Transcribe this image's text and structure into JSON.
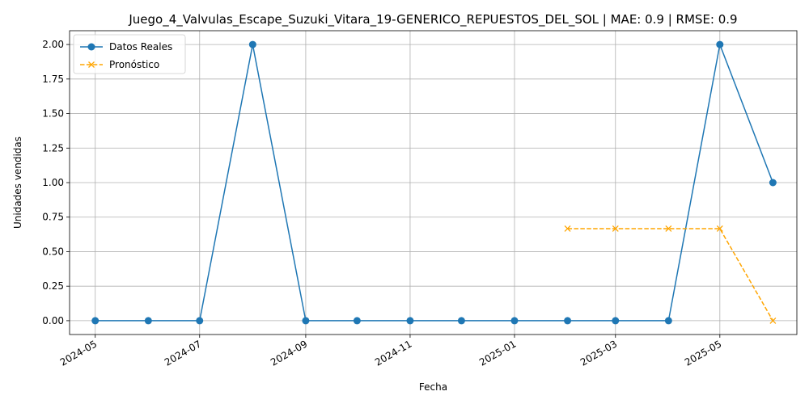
{
  "chart_data": {
    "type": "line",
    "title": "Juego_4_Valvulas_Escape_Suzuki_Vitara_19-GENERICO_REPUESTOS_DEL_SOL | MAE: 0.9 | RMSE: 0.9",
    "xlabel": "Fecha",
    "ylabel": "Unidades vendidas",
    "x_type": "date",
    "xlim": [
      "2024-04-16",
      "2025-06-15"
    ],
    "ylim": [
      -0.1,
      2.1
    ],
    "x_ticks": [
      "2024-05",
      "2024-07",
      "2024-09",
      "2024-11",
      "2025-01",
      "2025-03",
      "2025-05"
    ],
    "y_ticks": [
      "0.00",
      "0.25",
      "0.50",
      "0.75",
      "1.00",
      "1.25",
      "1.50",
      "1.75",
      "2.00"
    ],
    "grid": true,
    "legend_position": "top-left",
    "series": [
      {
        "name": "Datos Reales",
        "color": "#1f77b4",
        "style": "solid",
        "marker": "circle",
        "points": [
          {
            "x": "2024-05-01",
            "y": 0
          },
          {
            "x": "2024-06-01",
            "y": 0
          },
          {
            "x": "2024-07-01",
            "y": 0
          },
          {
            "x": "2024-08-01",
            "y": 2
          },
          {
            "x": "2024-09-01",
            "y": 0
          },
          {
            "x": "2024-10-01",
            "y": 0
          },
          {
            "x": "2024-11-01",
            "y": 0
          },
          {
            "x": "2024-12-01",
            "y": 0
          },
          {
            "x": "2025-01-01",
            "y": 0
          },
          {
            "x": "2025-02-01",
            "y": 0
          },
          {
            "x": "2025-03-01",
            "y": 0
          },
          {
            "x": "2025-04-01",
            "y": 0
          },
          {
            "x": "2025-05-01",
            "y": 2
          },
          {
            "x": "2025-06-01",
            "y": 1
          }
        ]
      },
      {
        "name": "Pronóstico",
        "color": "#ffa500",
        "style": "dashed",
        "marker": "x",
        "points": [
          {
            "x": "2025-02-01",
            "y": 0.6667
          },
          {
            "x": "2025-03-01",
            "y": 0.6667
          },
          {
            "x": "2025-04-01",
            "y": 0.6667
          },
          {
            "x": "2025-05-01",
            "y": 0.6667
          },
          {
            "x": "2025-06-01",
            "y": 0
          }
        ]
      }
    ]
  }
}
